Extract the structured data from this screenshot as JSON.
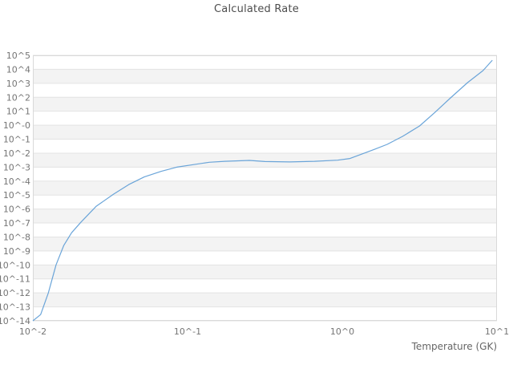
{
  "page": {
    "background_color": "#ffffff"
  },
  "chart_data": {
    "type": "line",
    "title": "Calculated Rate",
    "xlabel": "Temperature (GK)",
    "ylabel": "",
    "xscale": "log",
    "yscale": "log",
    "xlim_log10": [
      -2,
      1
    ],
    "ylim_log10": [
      -14,
      5
    ],
    "xtick_labels": [
      "10^-2",
      "10^-1",
      "10^0",
      "10^1"
    ],
    "xtick_log10": [
      -2,
      -1,
      0,
      1
    ],
    "ytick_labels": [
      "10^5",
      "10^4",
      "10^3",
      "10^2",
      "10^1",
      "10^-0",
      "10^-1",
      "10^-2",
      "10^-3",
      "10^-4",
      "10^-5",
      "10^-6",
      "10^-7",
      "10^-8",
      "10^-9",
      "10^-10",
      "10^-11",
      "10^-12",
      "10^-13",
      "10^-14"
    ],
    "ytick_log10": [
      5,
      4,
      3,
      2,
      1,
      0,
      -1,
      -2,
      -3,
      -4,
      -5,
      -6,
      -7,
      -8,
      -9,
      -10,
      -11,
      -12,
      -13,
      -14
    ],
    "grid": "horizontal-only",
    "alternating_row_bands": true,
    "legend": "none",
    "series": [
      {
        "name": "calculated-rate",
        "color": "#5b9bd5",
        "points_log10": [
          [
            -2.0,
            -14.0
          ],
          [
            -1.95,
            -13.55
          ],
          [
            -1.9,
            -12.0
          ],
          [
            -1.85,
            -10.0
          ],
          [
            -1.8,
            -8.6
          ],
          [
            -1.75,
            -7.7
          ],
          [
            -1.69,
            -6.95
          ],
          [
            -1.59,
            -5.8
          ],
          [
            -1.48,
            -4.95
          ],
          [
            -1.38,
            -4.25
          ],
          [
            -1.28,
            -3.7
          ],
          [
            -1.17,
            -3.3
          ],
          [
            -1.07,
            -3.0
          ],
          [
            -0.96,
            -2.82
          ],
          [
            -0.86,
            -2.65
          ],
          [
            -0.76,
            -2.58
          ],
          [
            -0.6,
            -2.52
          ],
          [
            -0.5,
            -2.6
          ],
          [
            -0.34,
            -2.63
          ],
          [
            -0.18,
            -2.58
          ],
          [
            -0.03,
            -2.5
          ],
          [
            0.05,
            -2.38
          ],
          [
            0.13,
            -2.05
          ],
          [
            0.21,
            -1.72
          ],
          [
            0.29,
            -1.37
          ],
          [
            0.39,
            -0.8
          ],
          [
            0.5,
            -0.05
          ],
          [
            0.6,
            0.93
          ],
          [
            0.7,
            1.96
          ],
          [
            0.81,
            3.05
          ],
          [
            0.91,
            3.91
          ],
          [
            0.97,
            4.65
          ]
        ]
      }
    ],
    "colors": {
      "line": "#5b9bd5",
      "band": "#f3f3f3",
      "gridline": "#e3e3e3",
      "plot_border": "#d9d9d9",
      "tick_text": "#757575",
      "title_text": "#4d4d4d",
      "background": "#ffffff"
    }
  }
}
